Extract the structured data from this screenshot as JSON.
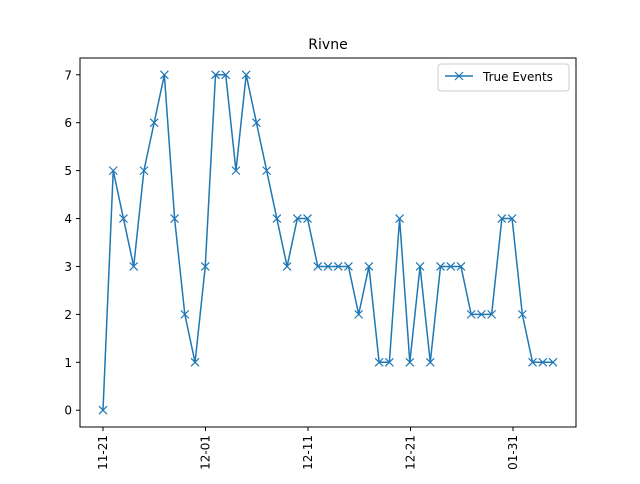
{
  "chart_data": {
    "type": "line",
    "title": "Rivne",
    "xlabel": "",
    "ylabel": "",
    "x_tick_labels": [
      "11-21",
      "12-01",
      "12-11",
      "12-21",
      "01-31"
    ],
    "y_ticks": [
      0,
      1,
      2,
      3,
      4,
      5,
      6,
      7
    ],
    "ylim": [
      -0.35,
      7.35
    ],
    "grid": false,
    "legend_position": "top-right",
    "series": [
      {
        "name": "True Events",
        "color": "#1f77b4",
        "marker": "x",
        "values": [
          0,
          5,
          4,
          3,
          5,
          6,
          7,
          4,
          2,
          1,
          3,
          7,
          7,
          5,
          7,
          6,
          5,
          4,
          3,
          4,
          4,
          3,
          3,
          3,
          3,
          2,
          3,
          1,
          1,
          4,
          1,
          3,
          1,
          3,
          3,
          3,
          2,
          2,
          2,
          4,
          4,
          2,
          1,
          1,
          1
        ]
      }
    ]
  }
}
